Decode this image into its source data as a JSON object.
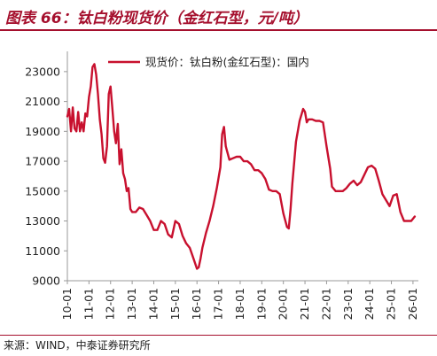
{
  "page": {
    "title": "图表 66：钛白粉现货价（金红石型，元/吨）",
    "source": "来源：WIND，中泰证券研究所"
  },
  "colors": {
    "accent": "#a50f2d",
    "series": "#c8102e",
    "axis": "#999999",
    "text": "#222222"
  },
  "chart_data": {
    "type": "line",
    "title": "",
    "xlabel": "",
    "ylabel": "",
    "ylim": [
      9000,
      24000
    ],
    "yticks": [
      9000,
      11000,
      13000,
      15000,
      17000,
      19000,
      21000,
      23000
    ],
    "ytick_labels": [
      "9000",
      "11000",
      "13000",
      "15000",
      "17000",
      "19000",
      "21000",
      "23000"
    ],
    "xlim": [
      "2010-01",
      "2026-04"
    ],
    "xticks": [
      "10-01",
      "11-01",
      "12-01",
      "13-01",
      "14-01",
      "15-01",
      "16-01",
      "17-01",
      "18-01",
      "19-01",
      "20-01",
      "21-01",
      "22-01",
      "23-01",
      "24-01",
      "25-01",
      "26-01"
    ],
    "grid": false,
    "legend_position": "top",
    "series": [
      {
        "name": "现货价：钛白粉(金红石型)：国内",
        "x": [
          "2010-01",
          "2010-02",
          "2010-03",
          "2010-04",
          "2010-05",
          "2010-06",
          "2010-07",
          "2010-08",
          "2010-09",
          "2010-10",
          "2010-11",
          "2010-12",
          "2011-01",
          "2011-02",
          "2011-03",
          "2011-04",
          "2011-05",
          "2011-06",
          "2011-07",
          "2011-08",
          "2011-09",
          "2011-10",
          "2011-11",
          "2011-12",
          "2012-01",
          "2012-02",
          "2012-03",
          "2012-04",
          "2012-05",
          "2012-06",
          "2012-07",
          "2012-08",
          "2012-09",
          "2012-10",
          "2012-11",
          "2012-12",
          "2013-01",
          "2013-03",
          "2013-05",
          "2013-07",
          "2013-09",
          "2013-11",
          "2014-01",
          "2014-03",
          "2014-05",
          "2014-07",
          "2014-09",
          "2014-11",
          "2015-01",
          "2015-03",
          "2015-05",
          "2015-07",
          "2015-09",
          "2015-11",
          "2016-01",
          "2016-02",
          "2016-03",
          "2016-04",
          "2016-06",
          "2016-08",
          "2016-10",
          "2016-12",
          "2017-02",
          "2017-03",
          "2017-04",
          "2017-05",
          "2017-07",
          "2017-09",
          "2017-11",
          "2018-01",
          "2018-03",
          "2018-05",
          "2018-07",
          "2018-09",
          "2018-11",
          "2019-01",
          "2019-03",
          "2019-05",
          "2019-07",
          "2019-09",
          "2019-11",
          "2020-01",
          "2020-03",
          "2020-04",
          "2020-05",
          "2020-06",
          "2020-08",
          "2020-10",
          "2020-12",
          "2021-01",
          "2021-02",
          "2021-03",
          "2021-05",
          "2021-07",
          "2021-09",
          "2021-11",
          "2022-01",
          "2022-03",
          "2022-04",
          "2022-06",
          "2022-08",
          "2022-10",
          "2022-12",
          "2023-02",
          "2023-04",
          "2023-06",
          "2023-08",
          "2023-10",
          "2023-12",
          "2024-02",
          "2024-04",
          "2024-06",
          "2024-08",
          "2024-10",
          "2024-12",
          "2025-02",
          "2025-04",
          "2025-06",
          "2025-08",
          "2025-10",
          "2025-12",
          "2026-02"
        ],
        "values": [
          20000,
          20500,
          19000,
          20600,
          19200,
          19000,
          20300,
          19000,
          19600,
          19000,
          20200,
          20000,
          21300,
          22000,
          23300,
          23500,
          22800,
          21500,
          19800,
          18800,
          17200,
          16900,
          18000,
          21500,
          22000,
          20500,
          19000,
          18200,
          19500,
          16800,
          17800,
          16200,
          15800,
          15000,
          15200,
          13800,
          13600,
          13600,
          13900,
          13800,
          13400,
          13000,
          12400,
          12400,
          13000,
          12800,
          12100,
          11900,
          13000,
          12800,
          12000,
          11500,
          11200,
          10500,
          9800,
          9900,
          10500,
          11200,
          12200,
          13000,
          14000,
          15200,
          16600,
          18800,
          19300,
          18000,
          17100,
          17200,
          17300,
          17300,
          17000,
          17000,
          16800,
          16400,
          16400,
          16200,
          15800,
          15100,
          15000,
          15000,
          14800,
          13500,
          12600,
          12500,
          13800,
          15500,
          18300,
          19700,
          20500,
          20300,
          19600,
          19800,
          19800,
          19700,
          19700,
          19600,
          18000,
          16500,
          15300,
          15000,
          15000,
          15000,
          15200,
          15500,
          15700,
          15400,
          15600,
          16100,
          16600,
          16700,
          16500,
          15700,
          14800,
          14400,
          14000,
          14700,
          14800,
          13600,
          13000,
          13000,
          13000,
          13300
        ]
      }
    ]
  }
}
